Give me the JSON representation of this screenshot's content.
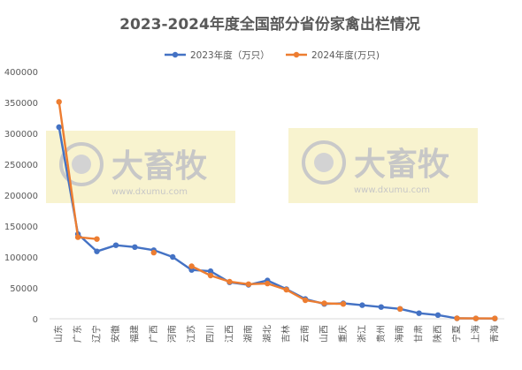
{
  "chart_data": {
    "type": "line",
    "title": "2023-2024年度全国部分省份家禽出栏情况",
    "xlabel": "",
    "ylabel": "",
    "ylim": [
      0,
      400000
    ],
    "yticks": [
      0,
      50000,
      100000,
      150000,
      200000,
      250000,
      300000,
      350000,
      400000
    ],
    "grid": false,
    "legend_position": "top-center",
    "categories": [
      "山东",
      "广东",
      "辽宁",
      "安徽",
      "福建",
      "广西",
      "河南",
      "江苏",
      "四川",
      "江西",
      "湖南",
      "湖北",
      "吉林",
      "云南",
      "山西",
      "重庆",
      "浙江",
      "贵州",
      "海南",
      "甘肃",
      "陕西",
      "宁夏",
      "上海",
      "青海"
    ],
    "series": [
      {
        "name": "2023年度（万只）",
        "color": "#4472C4",
        "values": [
          310000,
          137000,
          109000,
          119000,
          116000,
          111000,
          100000,
          79000,
          77000,
          59000,
          55000,
          62000,
          48000,
          32000,
          24000,
          25000,
          22000,
          19000,
          16000,
          9000,
          6000,
          700,
          500,
          400
        ]
      },
      {
        "name": "2024年度(万只)",
        "color": "#ED7D31",
        "values": [
          351000,
          132000,
          129000,
          null,
          null,
          107000,
          null,
          85000,
          70000,
          60000,
          56000,
          57000,
          47000,
          30000,
          25000,
          24000,
          null,
          null,
          16000,
          null,
          null,
          800,
          500,
          500
        ]
      }
    ]
  },
  "watermark": {
    "logo_text": "大畜牧",
    "url_text": "www.dxumu.com"
  }
}
